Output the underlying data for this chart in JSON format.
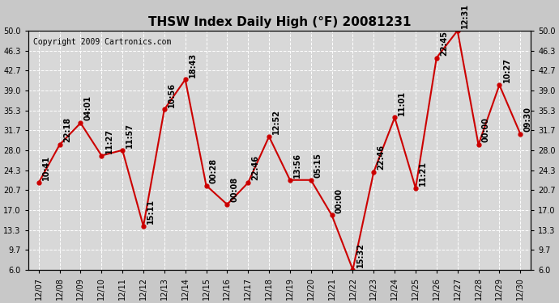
{
  "title": "THSW Index Daily High (°F) 20081231",
  "copyright": "Copyright 2009 Cartronics.com",
  "x_labels": [
    "12/07",
    "12/08",
    "12/09",
    "12/10",
    "12/11",
    "12/12",
    "12/13",
    "12/14",
    "12/15",
    "12/16",
    "12/17",
    "12/18",
    "12/19",
    "12/20",
    "12/21",
    "12/22",
    "12/23",
    "12/24",
    "12/25",
    "12/26",
    "12/27",
    "12/28",
    "12/29",
    "12/30"
  ],
  "y_values": [
    22.0,
    29.0,
    33.0,
    27.0,
    28.0,
    14.0,
    35.5,
    41.0,
    21.5,
    18.0,
    22.0,
    30.5,
    22.5,
    22.5,
    16.0,
    6.0,
    24.0,
    34.0,
    21.0,
    45.0,
    50.0,
    29.0,
    40.0,
    31.0
  ],
  "time_labels": [
    "10:41",
    "22:18",
    "04:01",
    "11:27",
    "11:57",
    "15:11",
    "10:56",
    "18:43",
    "00:28",
    "00:08",
    "22:46",
    "12:52",
    "13:56",
    "05:15",
    "00:00",
    "15:32",
    "22:46",
    "11:01",
    "11:21",
    "22:45",
    "12:31",
    "00:00",
    "10:27",
    "09:30"
  ],
  "y_ticks": [
    6.0,
    9.7,
    13.3,
    17.0,
    20.7,
    24.3,
    28.0,
    31.7,
    35.3,
    39.0,
    42.7,
    46.3,
    50.0
  ],
  "line_color": "#cc0000",
  "marker_color": "#cc0000",
  "plot_bg_color": "#d8d8d8",
  "fig_bg_color": "#c8c8c8",
  "grid_color": "#ffffff",
  "title_fontsize": 11,
  "copyright_fontsize": 7,
  "annot_fontsize": 7,
  "tick_fontsize": 7,
  "ylim_min": 6.0,
  "ylim_max": 50.0
}
